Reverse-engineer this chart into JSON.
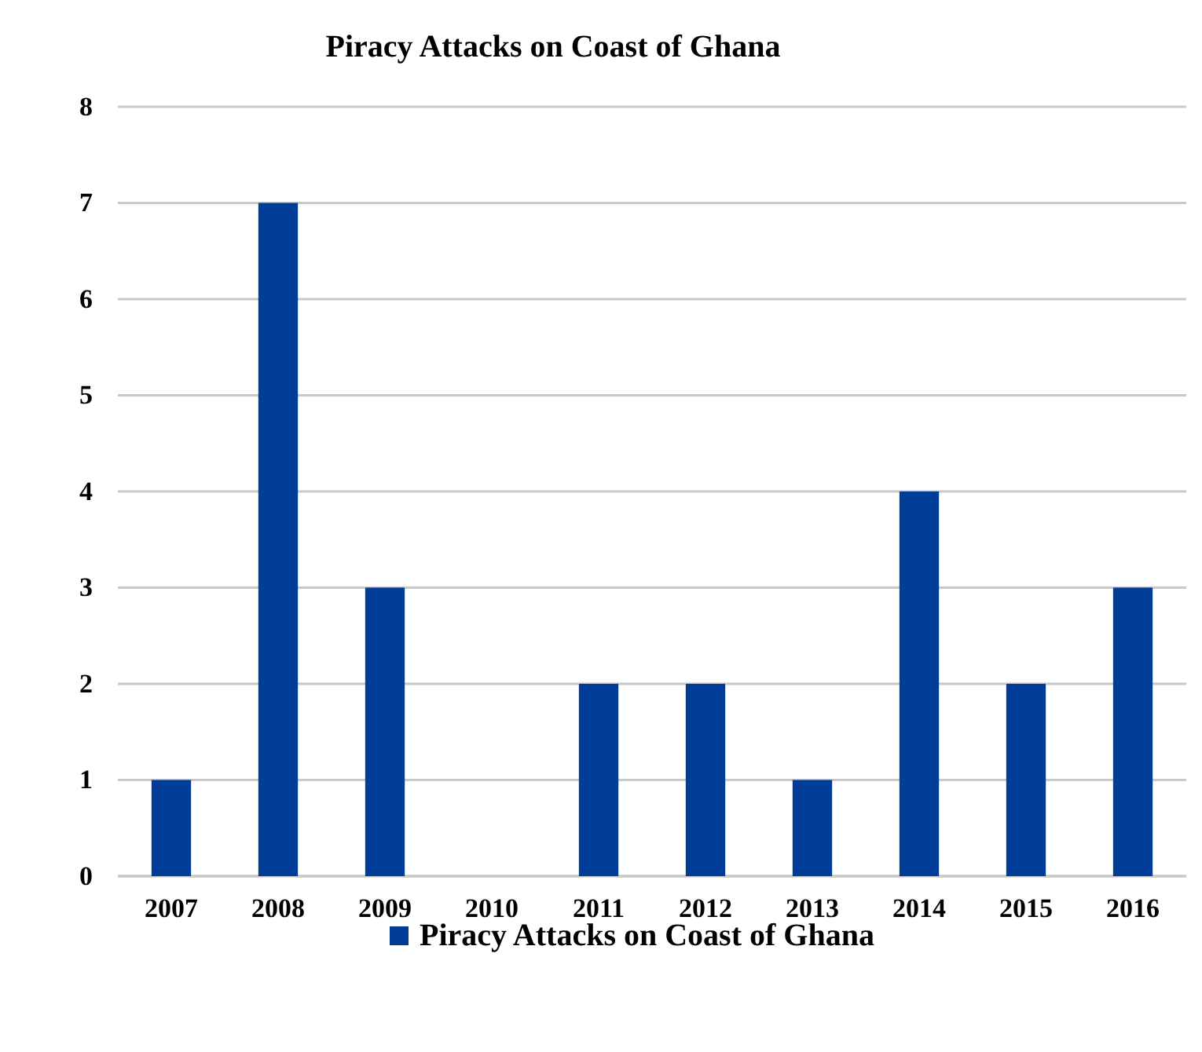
{
  "chart_data": {
    "type": "bar",
    "title": "Piracy Attacks on Coast of Ghana",
    "categories": [
      "2007",
      "2008",
      "2009",
      "2010",
      "2011",
      "2012",
      "2013",
      "2014",
      "2015",
      "2016"
    ],
    "series": [
      {
        "name": "Piracy Attacks on Coast of Ghana",
        "color": "#003d99",
        "values": [
          1,
          7,
          3,
          0,
          2,
          2,
          1,
          4,
          2,
          3
        ]
      }
    ],
    "ylim": [
      0,
      8
    ],
    "yticks": [
      0,
      1,
      2,
      3,
      4,
      5,
      6,
      7,
      8
    ],
    "grid": "y",
    "legend": "bottom"
  }
}
